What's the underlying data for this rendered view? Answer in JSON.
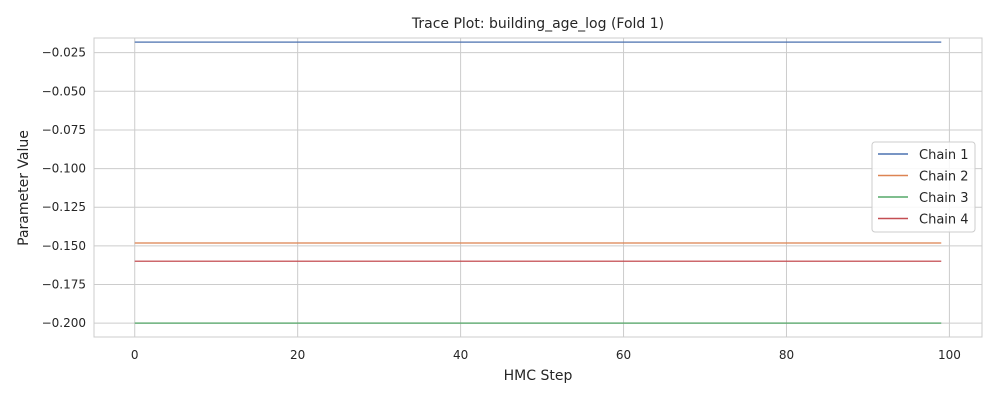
{
  "chart_data": {
    "type": "line",
    "title": "Trace Plot: building_age_log (Fold 1)",
    "xlabel": "HMC Step",
    "ylabel": "Parameter Value",
    "xlim": [
      -5,
      104
    ],
    "ylim": [
      -0.209,
      -0.0155
    ],
    "xticks": [
      0,
      20,
      40,
      60,
      80,
      100
    ],
    "xtick_labels": [
      "0",
      "20",
      "40",
      "60",
      "80",
      "100"
    ],
    "yticks": [
      -0.025,
      -0.05,
      -0.075,
      -0.1,
      -0.125,
      -0.15,
      -0.175,
      -0.2
    ],
    "ytick_labels": [
      "−0.025",
      "−0.050",
      "−0.075",
      "−0.100",
      "−0.125",
      "−0.150",
      "−0.175",
      "−0.200"
    ],
    "grid": true,
    "legend_position": "right",
    "x_range": [
      0,
      99
    ],
    "series": [
      {
        "name": "Chain 1",
        "color": "#4c72b0",
        "value": -0.0182
      },
      {
        "name": "Chain 2",
        "color": "#dd8452",
        "value": -0.1482
      },
      {
        "name": "Chain 3",
        "color": "#55a868",
        "value": -0.2
      },
      {
        "name": "Chain 4",
        "color": "#c44e52",
        "value": -0.16
      }
    ]
  }
}
